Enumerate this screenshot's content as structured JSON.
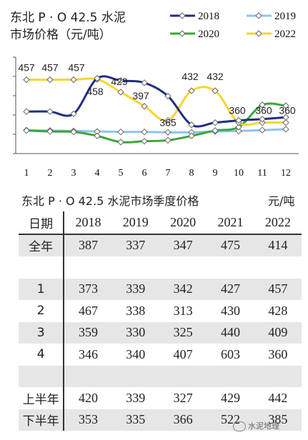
{
  "chart_data": {
    "type": "line",
    "title": "东北 P · O 42.5 水泥",
    "subtitle": "市场价格（元/吨）",
    "x": [
      1,
      2,
      3,
      4,
      5,
      6,
      7,
      8,
      9,
      10,
      11,
      12
    ],
    "series": [
      {
        "name": "2018",
        "color": "#1f2d86",
        "values": [
          385,
          385,
          380,
          460,
          455,
          450,
          420,
          355,
          360,
          365,
          368,
          372
        ]
      },
      {
        "name": "2019",
        "color": "#8fc3ee",
        "values": [
          343,
          342,
          341,
          340,
          339,
          339,
          338,
          338,
          340,
          341,
          343,
          345
        ]
      },
      {
        "name": "2020",
        "color": "#3aa63a",
        "values": [
          342,
          340,
          339,
          330,
          316,
          318,
          320,
          330,
          342,
          350,
          400,
          398
        ]
      },
      {
        "name": "2022",
        "color": "#f7d530",
        "values": [
          457,
          457,
          457,
          458,
          429,
          397,
          365,
          432,
          432,
          360,
          360,
          360
        ]
      }
    ],
    "data_labels": [
      {
        "series": "2022",
        "x": 1,
        "text": "457"
      },
      {
        "series": "2022",
        "x": 2,
        "text": "457"
      },
      {
        "series": "2022",
        "x": 3,
        "text": "457"
      },
      {
        "series": "2022",
        "x": 4,
        "text": "458"
      },
      {
        "series": "2022",
        "x": 5,
        "text": "429"
      },
      {
        "series": "2022",
        "x": 6,
        "text": "397"
      },
      {
        "series": "2022",
        "x": 7,
        "text": "365"
      },
      {
        "series": "2022",
        "x": 8,
        "text": "432"
      },
      {
        "series": "2022",
        "x": 9,
        "text": "432"
      },
      {
        "series": "2022",
        "x": 10,
        "text": "360"
      },
      {
        "series": "2022",
        "x": 11,
        "text": "360"
      },
      {
        "series": "2022",
        "x": 12,
        "text": "360"
      }
    ],
    "ylim": [
      290,
      500
    ],
    "legend_position": "top-right",
    "grid": false
  },
  "table": {
    "title": "东北 P · O 42.5 水泥市场季度价格",
    "unit": "元/吨",
    "header": [
      "日期",
      "2018",
      "2019",
      "2020",
      "2021",
      "2022"
    ],
    "rows": [
      {
        "label": "全年",
        "values": [
          "387",
          "337",
          "347",
          "475",
          "414"
        ],
        "shade": true
      },
      {
        "label": "",
        "values": [
          "",
          "",
          "",
          "",
          ""
        ],
        "shade": false
      },
      {
        "label": "1",
        "values": [
          "373",
          "339",
          "342",
          "427",
          "457"
        ],
        "shade": true
      },
      {
        "label": "2",
        "values": [
          "467",
          "338",
          "313",
          "430",
          "428"
        ],
        "shade": false
      },
      {
        "label": "3",
        "values": [
          "359",
          "330",
          "325",
          "440",
          "409"
        ],
        "shade": true
      },
      {
        "label": "4",
        "values": [
          "346",
          "340",
          "407",
          "603",
          "360"
        ],
        "shade": false
      },
      {
        "label": "",
        "values": [
          "",
          "",
          "",
          "",
          ""
        ],
        "shade": true
      },
      {
        "label": "上半年",
        "values": [
          "420",
          "339",
          "327",
          "429",
          "442"
        ],
        "shade": false
      },
      {
        "label": "下半年",
        "values": [
          "353",
          "335",
          "366",
          "522",
          "385"
        ],
        "shade": true
      }
    ]
  },
  "watermark": "水泥地理"
}
